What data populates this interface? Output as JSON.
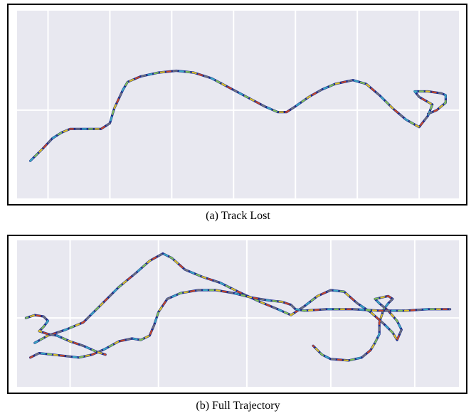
{
  "chart_data": [
    {
      "type": "line",
      "caption": "(a)  Track Lost",
      "background_color": "#e8e8f0",
      "grid": true,
      "grid_color": "#ffffff",
      "line_color": "#1a2a8c",
      "dash_colors": [
        "#3fb6c8",
        "#8fd14f",
        "#f2d21b",
        "#d94a1e",
        "#7a7a7a"
      ],
      "xlim": [
        0,
        100
      ],
      "ylim": [
        0,
        100
      ],
      "x_grid": [
        7,
        21,
        35,
        49,
        63,
        77,
        91
      ],
      "y_grid": [
        47
      ],
      "trajectories": [
        {
          "points": [
            [
              3,
              20
            ],
            [
              6,
              27
            ],
            [
              8,
              32
            ],
            [
              10,
              35
            ],
            [
              12,
              37
            ],
            [
              15,
              37
            ],
            [
              19,
              37
            ],
            [
              21,
              40
            ],
            [
              22,
              48
            ],
            [
              24,
              58
            ],
            [
              25,
              62
            ],
            [
              28,
              65
            ],
            [
              32,
              67
            ],
            [
              36,
              68
            ],
            [
              40,
              67
            ],
            [
              44,
              64
            ],
            [
              48,
              59
            ],
            [
              52,
              54
            ],
            [
              56,
              49
            ],
            [
              59,
              46
            ],
            [
              61,
              46
            ],
            [
              63,
              49
            ],
            [
              66,
              54
            ],
            [
              69,
              58
            ],
            [
              72,
              61
            ],
            [
              76,
              63
            ],
            [
              79,
              61
            ],
            [
              82,
              55
            ],
            [
              85,
              48
            ],
            [
              88,
              42
            ],
            [
              91,
              38
            ],
            [
              93,
              44
            ],
            [
              94,
              50
            ],
            [
              91,
              54
            ],
            [
              90,
              57
            ],
            [
              93,
              57
            ],
            [
              96,
              56
            ],
            [
              97,
              55
            ],
            [
              97,
              51
            ],
            [
              95,
              47
            ],
            [
              93,
              45
            ]
          ]
        }
      ]
    },
    {
      "type": "line",
      "caption": "(b)  Full Trajectory",
      "background_color": "#e8e8f0",
      "grid": true,
      "grid_color": "#ffffff",
      "line_color": "#1a2a8c",
      "dash_colors": [
        "#3fb6c8",
        "#8fd14f",
        "#f2d21b",
        "#d94a1e",
        "#7a7a7a"
      ],
      "xlim": [
        0,
        100
      ],
      "ylim": [
        0,
        100
      ],
      "x_grid": [
        12,
        32,
        52,
        71,
        90
      ],
      "y_grid": [
        47
      ],
      "trajectories": [
        {
          "points": [
            [
              4,
              30
            ],
            [
              7,
              35
            ],
            [
              11,
              39
            ],
            [
              15,
              44
            ],
            [
              19,
              56
            ],
            [
              23,
              68
            ],
            [
              27,
              78
            ],
            [
              30,
              86
            ],
            [
              33,
              91
            ],
            [
              35,
              88
            ],
            [
              38,
              80
            ],
            [
              42,
              75
            ],
            [
              46,
              71
            ],
            [
              50,
              65
            ],
            [
              55,
              58
            ],
            [
              59,
              53
            ],
            [
              62,
              49
            ],
            [
              65,
              55
            ],
            [
              68,
              62
            ],
            [
              71,
              66
            ],
            [
              74,
              65
            ],
            [
              77,
              57
            ],
            [
              80,
              51
            ],
            [
              83,
              43
            ],
            [
              85,
              37
            ],
            [
              86,
              32
            ],
            [
              87,
              39
            ],
            [
              86,
              45
            ],
            [
              84,
              52
            ],
            [
              82,
              57
            ],
            [
              81,
              60
            ],
            [
              84,
              62
            ],
            [
              85,
              60
            ],
            [
              84,
              57
            ],
            [
              83,
              53
            ],
            [
              82,
              44
            ],
            [
              82,
              36
            ],
            [
              81,
              30
            ],
            [
              80,
              25
            ],
            [
              78,
              20
            ],
            [
              75,
              18
            ],
            [
              71,
              19
            ],
            [
              69,
              22
            ],
            [
              67,
              28
            ]
          ]
        },
        {
          "points": [
            [
              3,
              20
            ],
            [
              5,
              23
            ],
            [
              8,
              22
            ],
            [
              11,
              21
            ],
            [
              14,
              20
            ],
            [
              17,
              22
            ],
            [
              20,
              26
            ],
            [
              23,
              31
            ],
            [
              26,
              33
            ],
            [
              28,
              32
            ],
            [
              30,
              35
            ],
            [
              31,
              42
            ],
            [
              32,
              51
            ],
            [
              34,
              60
            ],
            [
              37,
              64
            ],
            [
              41,
              66
            ],
            [
              45,
              66
            ],
            [
              49,
              64
            ],
            [
              53,
              61
            ],
            [
              57,
              59
            ],
            [
              60,
              58
            ],
            [
              62,
              56
            ],
            [
              63,
              53
            ],
            [
              65,
              52
            ],
            [
              70,
              53
            ],
            [
              76,
              53
            ],
            [
              82,
              52
            ],
            [
              88,
              52
            ],
            [
              93,
              53
            ],
            [
              98,
              53
            ]
          ]
        },
        {
          "points": [
            [
              2,
              47
            ],
            [
              4,
              49
            ],
            [
              6,
              48
            ],
            [
              7,
              45
            ],
            [
              6,
              41
            ],
            [
              5,
              38
            ],
            [
              7,
              36
            ],
            [
              9,
              35
            ],
            [
              12,
              31
            ],
            [
              15,
              28
            ],
            [
              18,
              24
            ],
            [
              20,
              22
            ]
          ]
        }
      ]
    }
  ]
}
